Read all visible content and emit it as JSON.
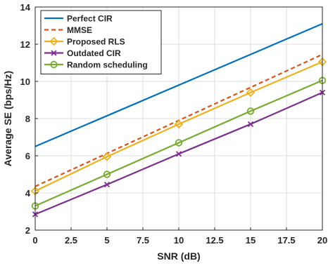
{
  "chart_data": {
    "type": "line",
    "xlabel": "SNR (dB)",
    "ylabel": "Average SE (bps/Hz)",
    "xlim": [
      0,
      20
    ],
    "ylim": [
      2,
      14
    ],
    "xticks": [
      "0",
      "2.5",
      "5",
      "7.5",
      "10",
      "12.5",
      "15",
      "17.5",
      "20"
    ],
    "xtick_values": [
      0,
      2.5,
      5,
      7.5,
      10,
      12.5,
      15,
      17.5,
      20
    ],
    "yticks": [
      "2",
      "4",
      "6",
      "8",
      "10",
      "12",
      "14"
    ],
    "ytick_values": [
      2,
      4,
      6,
      8,
      10,
      12,
      14
    ],
    "grid": true,
    "legend_position": "top-left",
    "series": [
      {
        "name": "Perfect CIR",
        "color": "#0072BD",
        "line_style": "solid",
        "marker": "none",
        "x": [
          0,
          20
        ],
        "y": [
          6.5,
          13.1
        ]
      },
      {
        "name": "MMSE",
        "color": "#D95319",
        "line_style": "dashed",
        "marker": "none",
        "x": [
          0,
          20
        ],
        "y": [
          4.35,
          11.45
        ]
      },
      {
        "name": "Proposed RLS",
        "color": "#EDB120",
        "line_style": "solid",
        "marker": "diamond",
        "x": [
          0,
          5,
          10,
          15,
          20
        ],
        "y": [
          4.1,
          5.95,
          7.7,
          9.4,
          11.05
        ]
      },
      {
        "name": "Outdated CIR",
        "color": "#7E2F8E",
        "line_style": "solid",
        "marker": "x",
        "x": [
          0,
          5,
          10,
          15,
          20
        ],
        "y": [
          2.85,
          4.45,
          6.1,
          7.7,
          9.4
        ]
      },
      {
        "name": "Random scheduling",
        "color": "#77AC30",
        "line_style": "solid",
        "marker": "circle",
        "x": [
          0,
          5,
          10,
          15,
          20
        ],
        "y": [
          3.3,
          5.0,
          6.7,
          8.4,
          10.05
        ]
      }
    ]
  }
}
